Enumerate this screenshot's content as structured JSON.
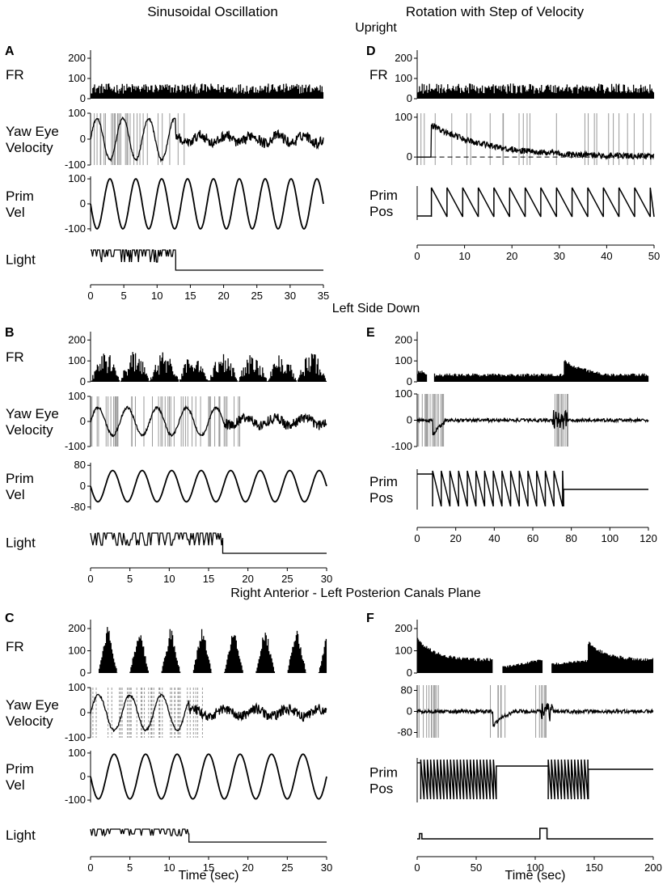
{
  "figure": {
    "column_titles": [
      "Sinusoidal Oscillation",
      "Rotation with Step of Velocity"
    ],
    "row_titles": [
      "Upright",
      "Left Side Down",
      "Right Anterior - Left Posterion Canals Plane"
    ],
    "x_axis_title": "Time (sec)"
  },
  "colors": {
    "trace": "#000000",
    "gray_trace": "#9a9a9a",
    "background": "#ffffff"
  },
  "chart_data": [
    {
      "panel": "A",
      "type": "line",
      "traces": [
        {
          "label": "FR",
          "kind": "fr",
          "y_ticks": [
            0,
            100,
            200
          ],
          "ylim": [
            0,
            240
          ]
        },
        {
          "label": "Yaw Eye Velocity",
          "kind": "eye",
          "y_ticks": [
            -100,
            0,
            100
          ],
          "ylim": [
            -100,
            100
          ]
        },
        {
          "label": "Prim Vel",
          "kind": "sine",
          "y_ticks": [
            -100,
            0,
            100
          ],
          "ylim": [
            -110,
            110
          ],
          "cycles": 9,
          "amplitude": 100
        },
        {
          "label": "Light",
          "kind": "light",
          "y_ticks": [],
          "on_until": 12.8
        }
      ],
      "x_ticks": [
        0,
        5,
        10,
        15,
        20,
        25,
        30,
        35
      ],
      "xlim": [
        0,
        35
      ],
      "annotations": {
        "eye_sine_until": 12.8,
        "eye_amplitude": 80
      }
    },
    {
      "panel": "D",
      "type": "line",
      "traces": [
        {
          "label": "FR",
          "kind": "fr",
          "y_ticks": [
            0,
            100,
            200
          ],
          "ylim": [
            0,
            240
          ]
        },
        {
          "label": "",
          "kind": "eye_decay",
          "y_ticks": [
            0,
            100
          ],
          "ylim": [
            -20,
            110
          ],
          "peak": 80
        },
        {
          "label": "Prim Pos",
          "kind": "saw",
          "y_ticks": [],
          "start": 3,
          "stop": 50,
          "period": 3.3
        }
      ],
      "x_ticks": [
        0,
        10,
        20,
        30,
        40,
        50
      ],
      "xlim": [
        0,
        50
      ]
    },
    {
      "panel": "B",
      "type": "line",
      "traces": [
        {
          "label": "FR",
          "kind": "fr_mod",
          "y_ticks": [
            0,
            100,
            200
          ],
          "ylim": [
            0,
            240
          ],
          "cycles": 8
        },
        {
          "label": "Yaw Eye Velocity",
          "kind": "eye",
          "y_ticks": [
            -100,
            0,
            100
          ],
          "ylim": [
            -100,
            100
          ]
        },
        {
          "label": "Prim Vel",
          "kind": "sine",
          "y_ticks": [
            -80,
            0,
            80
          ],
          "ylim": [
            -90,
            90
          ],
          "cycles": 8,
          "amplitude": 60
        },
        {
          "label": "Light",
          "kind": "light",
          "y_ticks": [],
          "on_until": 16.8
        }
      ],
      "x_ticks": [
        0,
        5,
        10,
        15,
        20,
        25,
        30
      ],
      "xlim": [
        0,
        30
      ],
      "annotations": {
        "eye_sine_until": 17,
        "eye_amplitude": 55
      }
    },
    {
      "panel": "E",
      "type": "line",
      "traces": [
        {
          "label": "",
          "kind": "fr_bump",
          "y_ticks": [
            0,
            100,
            200
          ],
          "ylim": [
            0,
            240
          ]
        },
        {
          "label": "",
          "kind": "eye_burst",
          "y_ticks": [
            -100,
            0,
            100
          ],
          "ylim": [
            -100,
            100
          ]
        },
        {
          "label": "Prim Pos",
          "kind": "saw_dense",
          "y_ticks": [],
          "start": 8,
          "stop": 76,
          "period": 4.5
        }
      ],
      "x_ticks": [
        0,
        20,
        40,
        60,
        80,
        100,
        120
      ],
      "xlim": [
        0,
        120
      ]
    },
    {
      "panel": "C",
      "type": "line",
      "traces": [
        {
          "label": "FR",
          "kind": "fr_tri",
          "y_ticks": [
            0,
            100,
            200
          ],
          "ylim": [
            0,
            240
          ],
          "cycles": 7.5
        },
        {
          "label": "Yaw Eye Velocity",
          "kind": "eye_dashed",
          "y_ticks": [
            -100,
            0,
            100
          ],
          "ylim": [
            -100,
            100
          ]
        },
        {
          "label": "Prim Vel",
          "kind": "sine",
          "y_ticks": [
            -100,
            0,
            100
          ],
          "ylim": [
            -110,
            110
          ],
          "cycles": 7.5,
          "amplitude": 95
        },
        {
          "label": "Light",
          "kind": "light",
          "y_ticks": [],
          "on_until": 12.5
        }
      ],
      "x_ticks": [
        0,
        5,
        10,
        15,
        20,
        25,
        30
      ],
      "xlim": [
        0,
        30
      ],
      "annotations": {
        "eye_sine_until": 12.5,
        "eye_amplitude": 70
      }
    },
    {
      "panel": "F",
      "type": "line",
      "traces": [
        {
          "label": "",
          "kind": "fr_two",
          "y_ticks": [
            0,
            100,
            200
          ],
          "ylim": [
            0,
            240
          ]
        },
        {
          "label": "",
          "kind": "eye_burst2",
          "y_ticks": [
            -80,
            0,
            80
          ],
          "ylim": [
            -100,
            100
          ]
        },
        {
          "label": "Prim Pos",
          "kind": "saw_two",
          "y_ticks": [],
          "segments": [
            [
              3,
              67
            ],
            [
              111,
              145
            ]
          ],
          "period": 2.8
        },
        {
          "label": "",
          "kind": "pulse",
          "y_ticks": [],
          "pulses": [
            [
              2,
              4,
              0.5
            ],
            [
              104,
              110,
              1.0
            ]
          ]
        }
      ],
      "x_ticks": [
        0,
        50,
        100,
        150,
        200
      ],
      "xlim": [
        0,
        200
      ]
    }
  ]
}
